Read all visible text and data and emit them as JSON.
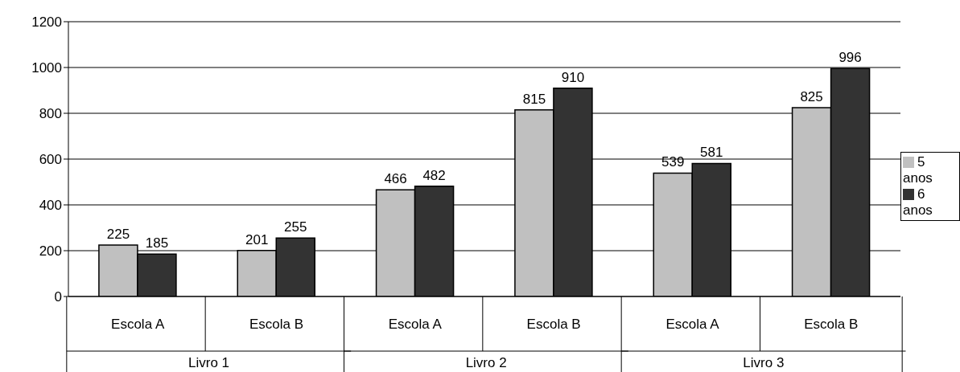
{
  "chart_data": {
    "type": "bar",
    "categories": [
      "Escola A",
      "Escola B",
      "Escola A",
      "Escola B",
      "Escola A",
      "Escola B"
    ],
    "series": [
      {
        "name": "5 anos",
        "color": "#c0c0c0",
        "values": [
          225,
          201,
          466,
          815,
          539,
          825
        ]
      },
      {
        "name": "6 anos",
        "color": "#333333",
        "values": [
          185,
          255,
          482,
          910,
          581,
          996
        ]
      }
    ],
    "annotations": [
      "Livro 1",
      "Livro 2",
      "Livro 3"
    ],
    "ylim": [
      0,
      1200
    ],
    "yticks": [
      0,
      200,
      400,
      600,
      800,
      1000,
      1200
    ],
    "grid": "y",
    "legend": "right",
    "data_labels": true
  }
}
